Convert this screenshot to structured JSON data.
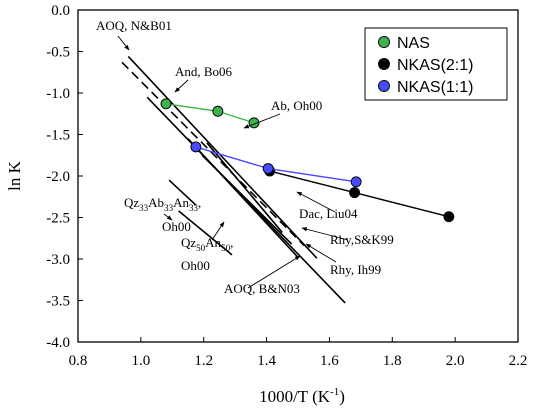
{
  "chart_data": {
    "type": "scatter",
    "xlabel": "1000/T (K",
    "xlabel_sup": "-1",
    "xlabel_close": ")",
    "ylabel": "ln K",
    "xlim": [
      0.8,
      2.2
    ],
    "ylim": [
      -4.0,
      0.0
    ],
    "x_ticks": [
      0.8,
      1.0,
      1.2,
      1.4,
      1.6,
      1.8,
      2.0,
      2.2
    ],
    "x_tick_labels": [
      "0.8",
      "1.0",
      "1.2",
      "1.4",
      "1.6",
      "1.8",
      "2.0",
      "2.2"
    ],
    "y_ticks": [
      0.0,
      -0.5,
      -1.0,
      -1.5,
      -2.0,
      -2.5,
      -3.0,
      -3.5,
      -4.0
    ],
    "y_tick_labels": [
      "0.0",
      "-0.5",
      "-1.0",
      "-1.5",
      "-2.0",
      "-2.5",
      "-3.0",
      "-3.5",
      "-4.0"
    ],
    "legend_position": "top-right",
    "series": [
      {
        "name": "NAS",
        "color": "#3cb44b",
        "x": [
          1.08,
          1.245,
          1.36
        ],
        "y": [
          -1.13,
          -1.22,
          -1.36
        ]
      },
      {
        "name": "NKAS(2:1)",
        "color": "#000000",
        "x": [
          1.41,
          1.68,
          1.98
        ],
        "y": [
          -1.94,
          -2.2,
          -2.49
        ]
      },
      {
        "name": "NKAS(1:1)",
        "color": "#4a4aff",
        "x": [
          1.175,
          1.405,
          1.685
        ],
        "y": [
          -1.65,
          -1.91,
          -2.07
        ]
      }
    ],
    "reference_lines": [
      {
        "name": "And, Bo06",
        "style": "solid",
        "x": [
          0.96,
          1.56
        ],
        "y": [
          -0.56,
          -2.99
        ]
      },
      {
        "name": "AOQ, N&B01",
        "style": "dashed",
        "x": [
          0.94,
          1.52
        ],
        "y": [
          -0.63,
          -2.84
        ]
      },
      {
        "name": "AOQ, B&N03",
        "style": "solid",
        "x": [
          1.02,
          1.65
        ],
        "y": [
          -1.05,
          -3.53
        ]
      },
      {
        "name": "Dac, Liu04",
        "style": "solid",
        "x": [
          1.21,
          1.45
        ],
        "y": [
          -1.6,
          -2.68
        ]
      },
      {
        "name": "Rhy, S&K99",
        "style": "solid",
        "x": [
          1.195,
          1.48
        ],
        "y": [
          -1.75,
          -2.82
        ]
      },
      {
        "name": "Rhy, Ih99",
        "style": "solid",
        "x": [
          1.15,
          1.5
        ],
        "y": [
          -1.55,
          -2.98
        ]
      },
      {
        "name": "Qz50An50",
        "style": "solid",
        "x": [
          1.12,
          1.29
        ],
        "y": [
          -2.42,
          -2.95
        ]
      },
      {
        "name": "Qz33Ab33An33",
        "style": "solid",
        "x": [
          1.09,
          1.175
        ],
        "y": [
          -2.05,
          -2.35
        ]
      }
    ],
    "annotations": [
      {
        "id": "aoq-nb01",
        "text": "AOQ, N&B01"
      },
      {
        "id": "and-bo06",
        "text": "And, Bo06"
      },
      {
        "id": "ab-oh00",
        "text": "Ab, Oh00"
      },
      {
        "id": "qz33-a",
        "text": "Qz",
        "sub1": "33",
        "t2": "Ab",
        "sub2": "33",
        "t3": "An",
        "sub3": "33",
        "t4": ","
      },
      {
        "id": "qz33-b",
        "text": "Oh00"
      },
      {
        "id": "qz50-a",
        "text": "Qz",
        "sub1": "50",
        "t2": "An",
        "sub2": "50",
        "t3": ","
      },
      {
        "id": "qz50-b",
        "text": "Oh00"
      },
      {
        "id": "dac-liu04",
        "text": "Dac, Liu04"
      },
      {
        "id": "rhy-sk99",
        "text": "Rhy,S&K99"
      },
      {
        "id": "rhy-ih99",
        "text": "Rhy, Ih99"
      },
      {
        "id": "aoq-bn03",
        "text": "AOQ, B&N03"
      }
    ]
  }
}
